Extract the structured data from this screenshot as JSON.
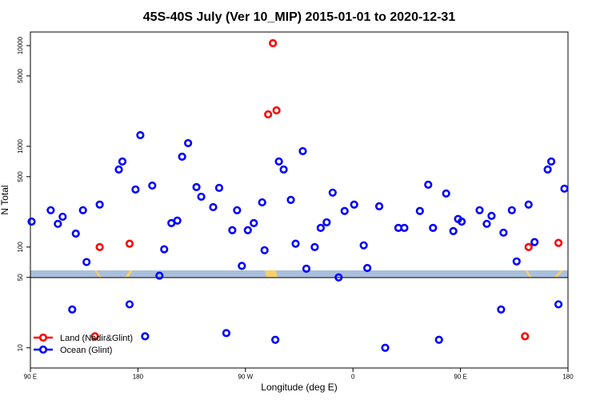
{
  "chart_data": {
    "type": "scatter",
    "title": "45S-40S July (Ver 10_MIP)   2015-01-01 to 2020-12-31",
    "x_label": "Longitude (deg E)",
    "y_label": "N Total",
    "y_scale": "log",
    "xlim": [
      90,
      540
    ],
    "ylim": [
      6.3,
      13650
    ],
    "xticks": [
      {
        "value": 90,
        "label": "90 E"
      },
      180,
      {
        "value": 270,
        "label": "90 W"
      },
      {
        "value": 360,
        "label": "0"
      },
      {
        "value": 450,
        "label": "90 E"
      },
      {
        "value": 540,
        "label": "180"
      }
    ],
    "yticks": [
      10,
      50,
      100,
      500,
      1000,
      5000,
      10000
    ],
    "legend": "bottom-left",
    "series": [
      {
        "name": "Land (Nadir&Glint)",
        "color": "#ff0000",
        "x": [
          293,
          289,
          296,
          148,
          173,
          507,
          532,
          144,
          504
        ],
        "values": [
          10570,
          2077,
          2276,
          100,
          108,
          100,
          110,
          13,
          13
        ]
      },
      {
        "name": "Ocean (Glint)",
        "color": "#0000ff",
        "x": [
          91,
          107,
          113,
          117,
          128,
          134,
          137,
          148,
          164,
          167,
          178,
          182,
          192,
          198,
          202,
          208,
          213,
          217,
          222,
          229,
          233,
          243,
          248,
          259,
          263,
          267,
          272,
          277,
          284,
          286,
          298,
          302,
          308,
          312,
          318,
          321,
          328,
          333,
          338,
          343,
          348,
          353,
          361,
          369,
          372,
          382,
          387,
          398,
          403,
          416,
          423,
          427,
          438,
          444,
          448,
          451,
          466,
          472,
          476,
          486,
          493,
          497,
          507,
          512,
          523,
          526,
          537,
          125,
          173,
          186,
          254,
          295,
          432,
          484,
          532
        ],
        "values": [
          179,
          232,
          170,
          200,
          136,
          232,
          71,
          264,
          589,
          707,
          373,
          1291,
          408,
          52,
          95,
          173,
          183,
          789,
          1076,
          394,
          316,
          249,
          387,
          147,
          232,
          65,
          147,
          173,
          278,
          93,
          707,
          589,
          294,
          108,
          896,
          61,
          100,
          155,
          176,
          347,
          50,
          228,
          264,
          104,
          62,
          254,
          10,
          155,
          155,
          228,
          416,
          155,
          340,
          144,
          190,
          179,
          232,
          170,
          204,
          139,
          232,
          72,
          264,
          112,
          589,
          707,
          380,
          24,
          27,
          13,
          14,
          12,
          12,
          24,
          27
        ]
      }
    ]
  }
}
